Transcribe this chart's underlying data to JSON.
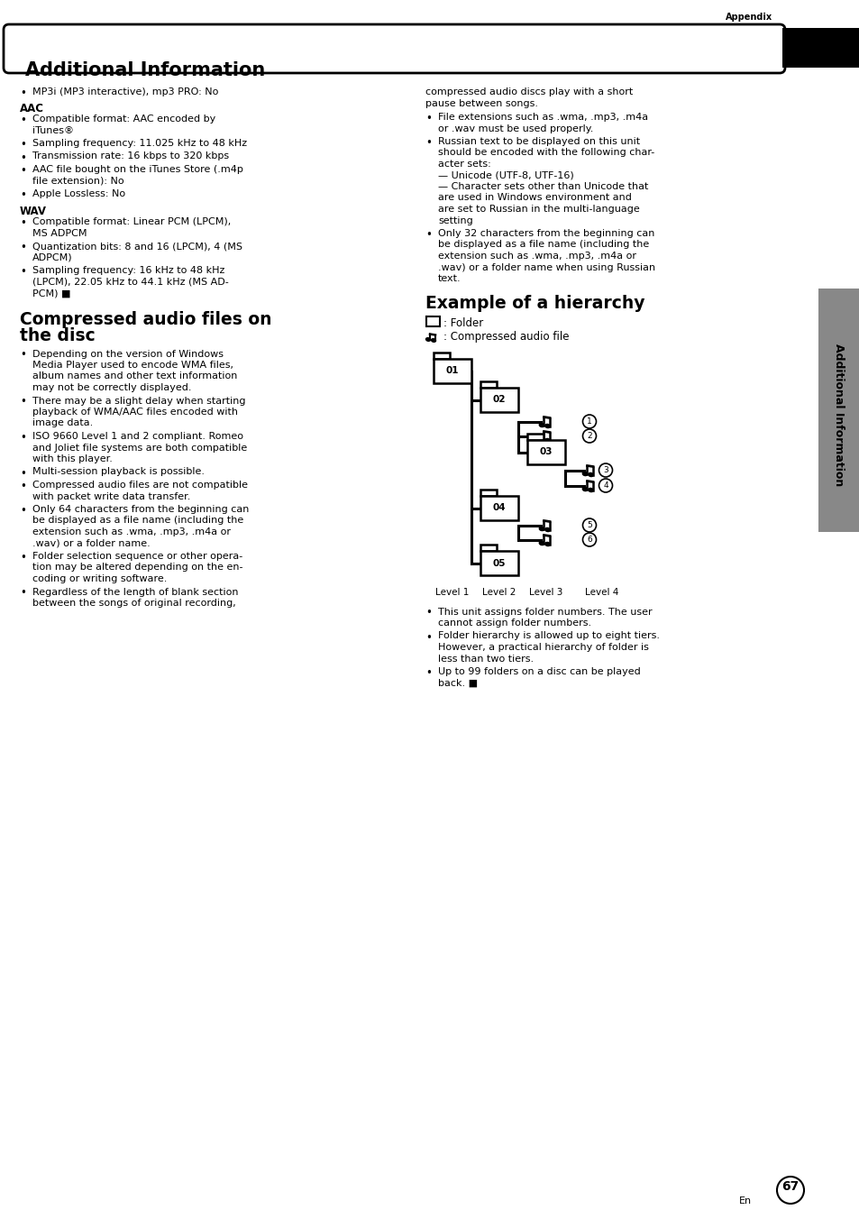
{
  "title": "Additional Information",
  "appendix_label": "Appendix",
  "sidebar_label": "Additional Information",
  "page_number": "67",
  "left_column": {
    "bullet_intro": "MP3i (MP3 interactive), mp3 PRO: No",
    "aac_heading": "AAC",
    "aac_bullets": [
      [
        "Compatible format: AAC encoded by",
        "iTunes®"
      ],
      [
        "Sampling frequency: 11.025 kHz to 48 kHz"
      ],
      [
        "Transmission rate: 16 kbps to 320 kbps"
      ],
      [
        "AAC file bought on the iTunes Store (.m4p",
        "file extension): No"
      ],
      [
        "Apple Lossless: No"
      ]
    ],
    "wav_heading": "WAV",
    "wav_bullets": [
      [
        "Compatible format: Linear PCM (LPCM),",
        "MS ADPCM"
      ],
      [
        "Quantization bits: 8 and 16 (LPCM), 4 (MS",
        "ADPCM)"
      ],
      [
        "Sampling frequency: 16 kHz to 48 kHz",
        "(LPCM), 22.05 kHz to 44.1 kHz (MS AD-",
        "PCM) ■"
      ]
    ],
    "section2_heading1": "Compressed audio files on",
    "section2_heading2": "the disc",
    "section2_bullets": [
      [
        "Depending on the version of Windows",
        "Media Player used to encode WMA files,",
        "album names and other text information",
        "may not be correctly displayed."
      ],
      [
        "There may be a slight delay when starting",
        "playback of WMA/AAC files encoded with",
        "image data."
      ],
      [
        "ISO 9660 Level 1 and 2 compliant. Romeo",
        "and Joliet file systems are both compatible",
        "with this player."
      ],
      [
        "Multi-session playback is possible."
      ],
      [
        "Compressed audio files are not compatible",
        "with packet write data transfer."
      ],
      [
        "Only 64 characters from the beginning can",
        "be displayed as a file name (including the",
        "extension such as .wma, .mp3, .m4a or",
        ".wav) or a folder name."
      ],
      [
        "Folder selection sequence or other opera-",
        "tion may be altered depending on the en-",
        "coding or writing software."
      ],
      [
        "Regardless of the length of blank section",
        "between the songs of original recording,"
      ]
    ]
  },
  "right_column": {
    "intro_lines": [
      "compressed audio discs play with a short",
      "pause between songs."
    ],
    "bullets": [
      [
        "File extensions such as .wma, .mp3, .m4a",
        "or .wav must be used properly."
      ],
      [
        "Russian text to be displayed on this unit",
        "should be encoded with the following char-",
        "acter sets:",
        "— Unicode (UTF-8, UTF-16)",
        "— Character sets other than Unicode that",
        "are used in Windows environment and",
        "are set to Russian in the multi-language",
        "setting"
      ],
      [
        "Only 32 characters from the beginning can",
        "be displayed as a file name (including the",
        "extension such as .wma, .mp3, .m4a or",
        ".wav) or a folder name when using Russian",
        "text."
      ]
    ],
    "hierarchy_heading": "Example of a hierarchy",
    "legend_folder": ": Folder",
    "legend_note": ": Compressed audio file",
    "level_labels": [
      "Level 1",
      "Level 2",
      "Level 3",
      "Level 4"
    ],
    "after_bullets": [
      [
        "This unit assigns folder numbers. The user",
        "cannot assign folder numbers."
      ],
      [
        "Folder hierarchy is allowed up to eight tiers.",
        "However, a practical hierarchy of folder is",
        "less than two tiers."
      ],
      [
        "Up to 99 folders on a disc can be played",
        "back. ■"
      ]
    ]
  },
  "background_color": "#ffffff"
}
